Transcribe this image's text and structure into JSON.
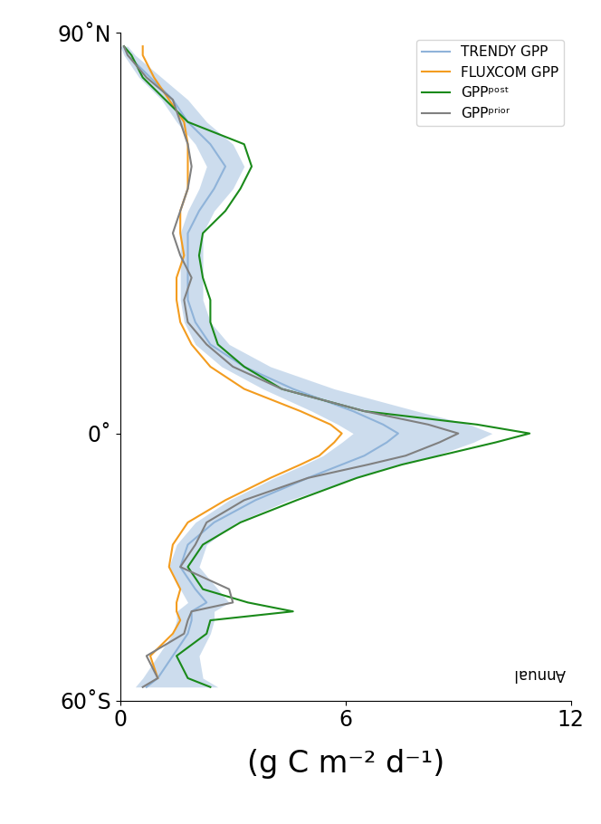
{
  "chart_data": {
    "type": "line",
    "x_label": "(g C m⁻² d⁻¹)",
    "annotation": "Annual",
    "xlim": [
      0,
      12
    ],
    "xticks": [
      0,
      6,
      12
    ],
    "ylim": [
      -60,
      90
    ],
    "yticks": [
      {
        "value": 90,
        "label": "90˚N"
      },
      {
        "value": 0,
        "label": "0˚"
      },
      {
        "value": -60,
        "label": "60˚S"
      }
    ],
    "y": [
      87,
      85,
      80,
      75,
      70,
      65,
      60,
      55,
      50,
      45,
      40,
      35,
      30,
      25,
      20,
      15,
      10,
      5,
      2,
      0,
      -2,
      -5,
      -7,
      -10,
      -15,
      -20,
      -25,
      -30,
      -35,
      -38,
      -40,
      -42,
      -45,
      -50,
      -55,
      -57
    ],
    "legend": "upper right",
    "grid": false,
    "series": [
      {
        "name": "TRENDY GPP",
        "color": "#8fb3d9",
        "values": [
          0.1,
          0.2,
          0.8,
          1.4,
          1.8,
          2.4,
          2.8,
          2.5,
          2.1,
          1.8,
          1.8,
          1.8,
          1.8,
          2.0,
          2.4,
          3.3,
          4.6,
          6.2,
          7.0,
          7.4,
          7.1,
          6.5,
          5.9,
          5.0,
          3.6,
          2.5,
          1.8,
          1.6,
          2.0,
          2.3,
          1.9,
          1.9,
          1.8,
          1.4,
          1.0,
          0.7
        ],
        "lower": [
          0.0,
          0.1,
          0.5,
          1.1,
          1.5,
          2.0,
          2.3,
          2.1,
          1.8,
          1.6,
          1.6,
          1.6,
          1.6,
          1.7,
          2.0,
          2.7,
          3.8,
          5.1,
          5.8,
          6.2,
          5.9,
          5.4,
          4.9,
          4.1,
          2.9,
          2.0,
          1.5,
          1.3,
          1.6,
          1.8,
          1.5,
          1.5,
          1.4,
          1.0,
          0.6,
          0.4
        ],
        "upper": [
          0.2,
          0.4,
          1.1,
          1.8,
          2.3,
          3.0,
          3.3,
          3.0,
          2.5,
          2.2,
          2.2,
          2.2,
          2.2,
          2.4,
          2.9,
          4.0,
          5.7,
          7.9,
          9.3,
          9.9,
          9.4,
          8.4,
          7.4,
          6.3,
          4.5,
          3.1,
          2.3,
          2.1,
          2.6,
          2.9,
          2.5,
          2.5,
          2.4,
          2.1,
          2.2,
          2.6
        ]
      },
      {
        "name": "FLUXCOM GPP",
        "color": "#f39c1f",
        "values": [
          0.6,
          0.6,
          0.9,
          1.3,
          1.7,
          1.8,
          1.8,
          1.8,
          1.6,
          1.6,
          1.7,
          1.5,
          1.5,
          1.6,
          1.9,
          2.4,
          3.3,
          4.8,
          5.6,
          5.9,
          5.7,
          5.3,
          4.8,
          4.0,
          2.8,
          1.8,
          1.4,
          1.3,
          1.6,
          1.5,
          1.5,
          1.6,
          1.4,
          0.8,
          1.0,
          null
        ]
      },
      {
        "name": "GPPᵖᵒˢᵗ",
        "color": "#1a8a1a",
        "values": [
          0.1,
          0.3,
          0.6,
          1.2,
          1.8,
          3.3,
          3.5,
          3.2,
          2.8,
          2.2,
          2.1,
          2.2,
          2.4,
          2.4,
          2.6,
          3.3,
          4.3,
          6.5,
          9.5,
          10.9,
          10.0,
          8.5,
          7.5,
          6.3,
          4.7,
          3.2,
          2.2,
          1.8,
          2.2,
          3.4,
          4.6,
          2.4,
          2.3,
          1.5,
          1.8,
          2.4
        ]
      },
      {
        "name": "GPPᵖʳⁱᵒʳ",
        "color": "#808080",
        "values": [
          0.1,
          0.2,
          0.7,
          1.4,
          1.6,
          1.8,
          1.9,
          1.8,
          1.6,
          1.4,
          1.6,
          1.9,
          1.7,
          1.8,
          2.3,
          3.0,
          4.3,
          6.5,
          8.2,
          9.0,
          8.5,
          7.6,
          6.6,
          5.0,
          3.3,
          2.3,
          2.0,
          1.6,
          2.9,
          3.0,
          1.9,
          1.8,
          1.7,
          0.7,
          1.0,
          0.6
        ]
      }
    ]
  }
}
